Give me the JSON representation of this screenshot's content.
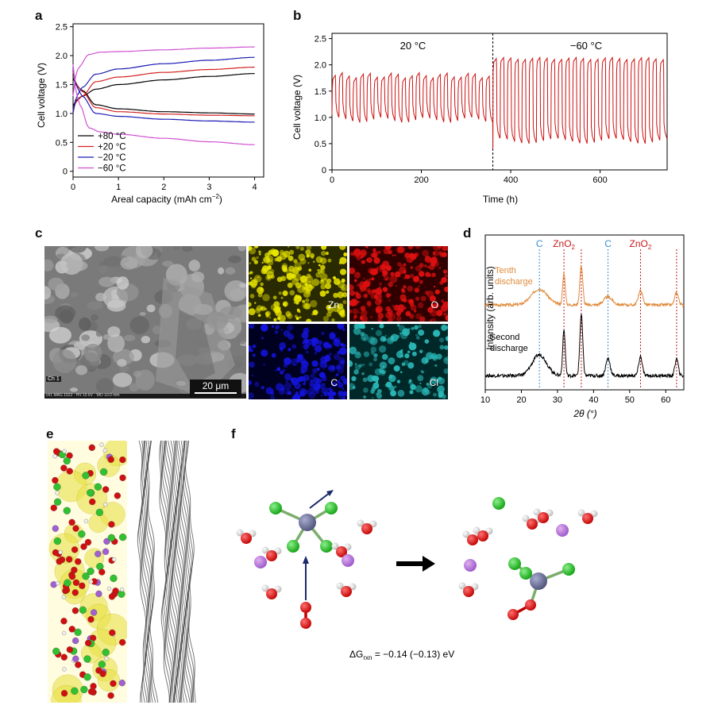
{
  "panel_labels": {
    "a": "a",
    "b": "b",
    "c": "c",
    "d": "d",
    "e": "e",
    "f": "f"
  },
  "colors": {
    "plus80": "#000000",
    "plus20": "#d42020",
    "minus20": "#1a1ab4",
    "minus60": "#d050d0",
    "cycle": "#cc1111",
    "xrd_tenth": "#e08a3a",
    "xrd_second": "#000000",
    "marker_c": "#3a8fd0",
    "marker_zno2": "#c81818",
    "zn_map": "#e9e600",
    "o_map": "#e01010",
    "c_map": "#1414e0",
    "cl_map": "#2ab8b8"
  },
  "chart_data": [
    {
      "panel": "a",
      "type": "line",
      "xlabel": "Areal capacity (mAh cm",
      "xlabel_sup": "−2",
      "xlabel_end": ")",
      "ylabel": "Cell voltage (V)",
      "xlim": [
        0,
        4.2
      ],
      "ylim": [
        -0.1,
        2.55
      ],
      "xticks": [
        "0",
        "1",
        "2",
        "3",
        "4"
      ],
      "yticks": [
        "0",
        "0.5",
        "1.0",
        "1.5",
        "2.0",
        "2.5"
      ],
      "legend": [
        "+80 °C",
        "+20 °C",
        "−20 °C",
        "−60 °C"
      ],
      "series": [
        {
          "name": "+80 °C",
          "charge": [
            [
              0,
              1.12
            ],
            [
              0.2,
              1.3
            ],
            [
              0.5,
              1.42
            ],
            [
              1,
              1.5
            ],
            [
              2,
              1.58
            ],
            [
              3,
              1.64
            ],
            [
              4,
              1.69
            ]
          ],
          "discharge": [
            [
              0,
              1.62
            ],
            [
              0.2,
              1.4
            ],
            [
              0.5,
              1.15
            ],
            [
              1,
              1.08
            ],
            [
              2,
              1.03
            ],
            [
              3,
              1.01
            ],
            [
              4,
              0.99
            ]
          ]
        },
        {
          "name": "+20 °C",
          "charge": [
            [
              0,
              1.05
            ],
            [
              0.2,
              1.3
            ],
            [
              0.5,
              1.55
            ],
            [
              1,
              1.63
            ],
            [
              2,
              1.71
            ],
            [
              3,
              1.76
            ],
            [
              4,
              1.8
            ]
          ],
          "discharge": [
            [
              0,
              1.72
            ],
            [
              0.2,
              1.38
            ],
            [
              0.5,
              1.1
            ],
            [
              1,
              1.03
            ],
            [
              2,
              0.99
            ],
            [
              3,
              0.97
            ],
            [
              4,
              0.96
            ]
          ]
        },
        {
          "name": "−20 °C",
          "charge": [
            [
              0,
              1.0
            ],
            [
              0.2,
              1.45
            ],
            [
              0.5,
              1.68
            ],
            [
              1,
              1.77
            ],
            [
              2,
              1.86
            ],
            [
              3,
              1.92
            ],
            [
              4,
              1.97
            ]
          ],
          "discharge": [
            [
              0,
              1.78
            ],
            [
              0.2,
              1.3
            ],
            [
              0.5,
              1.0
            ],
            [
              1,
              0.95
            ],
            [
              2,
              0.9
            ],
            [
              3,
              0.87
            ],
            [
              4,
              0.85
            ]
          ]
        },
        {
          "name": "−60 °C",
          "charge": [
            [
              0,
              1.3
            ],
            [
              0.12,
              1.8
            ],
            [
              0.35,
              2.02
            ],
            [
              0.6,
              2.06
            ],
            [
              1,
              2.07
            ],
            [
              2,
              2.1
            ],
            [
              3,
              2.13
            ],
            [
              4,
              2.15
            ]
          ],
          "discharge": [
            [
              0,
              1.85
            ],
            [
              0.15,
              1.15
            ],
            [
              0.35,
              0.75
            ],
            [
              0.6,
              0.68
            ],
            [
              1,
              0.64
            ],
            [
              2,
              0.57
            ],
            [
              3,
              0.51
            ],
            [
              4,
              0.46
            ]
          ]
        }
      ]
    },
    {
      "panel": "b",
      "type": "line",
      "xlabel": "Time (h)",
      "ylabel": "Cell voltage (V)",
      "xlim": [
        0,
        750
      ],
      "ylim": [
        0,
        2.6
      ],
      "xticks": [
        "0",
        "200",
        "400",
        "600"
      ],
      "yticks": [
        "0",
        "0.5",
        "1.0",
        "1.5",
        "2.0",
        "2.5"
      ],
      "divider_x": 360,
      "annotations": [
        "20 °C",
        "−60 °C"
      ],
      "segments": [
        {
          "t_start": 0,
          "t_end": 360,
          "cycles": 23,
          "v_low": 0.95,
          "v_high": 1.8
        },
        {
          "t_start": 360,
          "t_end": 750,
          "cycles": 24,
          "v_low": 0.55,
          "v_high": 2.12
        }
      ]
    },
    {
      "panel": "d",
      "type": "line",
      "xlabel": "2θ (°)",
      "ylabel": "Intensity (arb. units)",
      "xlim": [
        10,
        65
      ],
      "xticks": [
        "10",
        "20",
        "30",
        "40",
        "50",
        "60"
      ],
      "series": [
        {
          "name": "Tenth discharge",
          "offset": 1.0,
          "peaks": [
            [
              25,
              0.5,
              2.2
            ],
            [
              31.8,
              1.0,
              0.35
            ],
            [
              36.6,
              1.25,
              0.4
            ],
            [
              44,
              0.25,
              1.2
            ],
            [
              53,
              0.45,
              0.6
            ],
            [
              63,
              0.4,
              0.5
            ]
          ]
        },
        {
          "name": "Second discharge",
          "offset": 0.0,
          "peaks": [
            [
              25,
              0.55,
              2.0
            ],
            [
              31.8,
              1.2,
              0.35
            ],
            [
              36.6,
              1.6,
              0.4
            ],
            [
              44,
              0.45,
              0.6
            ],
            [
              53,
              0.5,
              0.5
            ],
            [
              63,
              0.45,
              0.45
            ]
          ]
        }
      ],
      "markers": [
        {
          "label": "C",
          "x": 25,
          "kind": "c"
        },
        {
          "label": "ZnO",
          "sub": "2",
          "x": 31.8,
          "kind": "zno2"
        },
        {
          "label": "",
          "x": 36.6,
          "kind": "zno2"
        },
        {
          "label": "C",
          "x": 44,
          "kind": "c"
        },
        {
          "label": "ZnO",
          "sub": "2",
          "x": 53,
          "kind": "zno2"
        },
        {
          "label": "",
          "x": 63,
          "kind": "zno2"
        }
      ]
    }
  ],
  "panel_c": {
    "scale_bar": "20 μm",
    "ch_label": "Ch 1",
    "footer_text": "ch1  MAG 1522 · HV 15 kV · WD 10.0 mm",
    "maps": [
      "Zn",
      "O",
      "C",
      "Cl"
    ]
  },
  "panel_f": {
    "dg_prefix": "ΔG",
    "dg_sub": "rxn",
    "dg_value": " = −0.14 (−0.13) eV"
  }
}
